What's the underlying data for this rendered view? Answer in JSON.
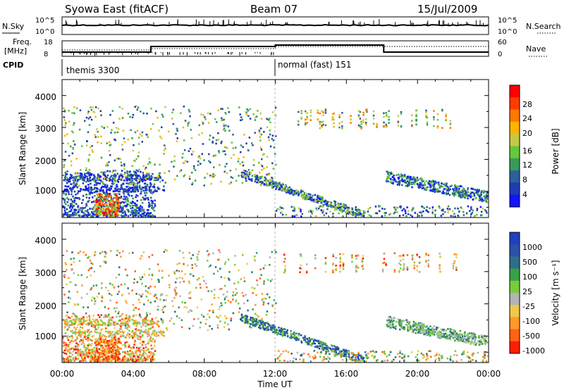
{
  "header": {
    "title": "Syowa East (fitACF)",
    "beam": "Beam 07",
    "date": "15/Jul/2009"
  },
  "top_panels": {
    "nsky_label": "N.Sky",
    "nsky_ticks": [
      "10^5",
      "10^0"
    ],
    "nsearch_label": "N.Search",
    "freq_label_line1": "Freq.",
    "freq_label_line2": "[MHz]",
    "freq_ticks": [
      "18",
      "8"
    ],
    "nave_label": "Nave",
    "nave_ticks": [
      "60",
      "0"
    ],
    "cpid_label": "CPID",
    "cpid_segments": [
      {
        "label": "themis 3300",
        "start_hour": 0,
        "end_hour": 12
      },
      {
        "label": "normal (fast) 151",
        "start_hour": 12,
        "end_hour": 24
      }
    ]
  },
  "colors": {
    "power": [
      "#1414ff",
      "#1e3cb4",
      "#2e5f9a",
      "#3a9a5a",
      "#64c83c",
      "#c8c846",
      "#ffb400",
      "#ff7800",
      "#ff3c00",
      "#ff0000"
    ],
    "velocity": [
      "#2040c0",
      "#2a52a8",
      "#2f6e8a",
      "#3aa04a",
      "#78cc3c",
      "#b4b4b4",
      "#f0c84a",
      "#ff9a28",
      "#ff6414",
      "#ff1e00"
    ]
  },
  "chart_data": [
    {
      "type": "heatmap",
      "name": "power",
      "ylabel": "Slant Range [km]",
      "xlabel": "",
      "xlim": [
        0,
        24
      ],
      "ylim": [
        180,
        4500
      ],
      "yticks": [
        "1000",
        "2000",
        "3000",
        "4000"
      ],
      "colorbar_label": "Power [dB]",
      "colorbar_ticks": [
        "4",
        "8",
        "12",
        "16",
        "20",
        "24",
        "28"
      ],
      "colorbar_range": [
        0,
        30
      ]
    },
    {
      "type": "heatmap",
      "name": "velocity",
      "ylabel": "Slant Range [km]",
      "xlabel": "Time UT",
      "xlim": [
        0,
        24
      ],
      "ylim": [
        180,
        4500
      ],
      "xticks": [
        "00:00",
        "04:00",
        "08:00",
        "12:00",
        "16:00",
        "20:00",
        "00:00"
      ],
      "yticks": [
        "1000",
        "2000",
        "3000",
        "4000"
      ],
      "colorbar_label": "Velocity [m s⁻¹]",
      "colorbar_ticks": [
        "1000",
        "500",
        "100",
        "25",
        "-25",
        "-100",
        "-500",
        "-1000"
      ]
    }
  ]
}
